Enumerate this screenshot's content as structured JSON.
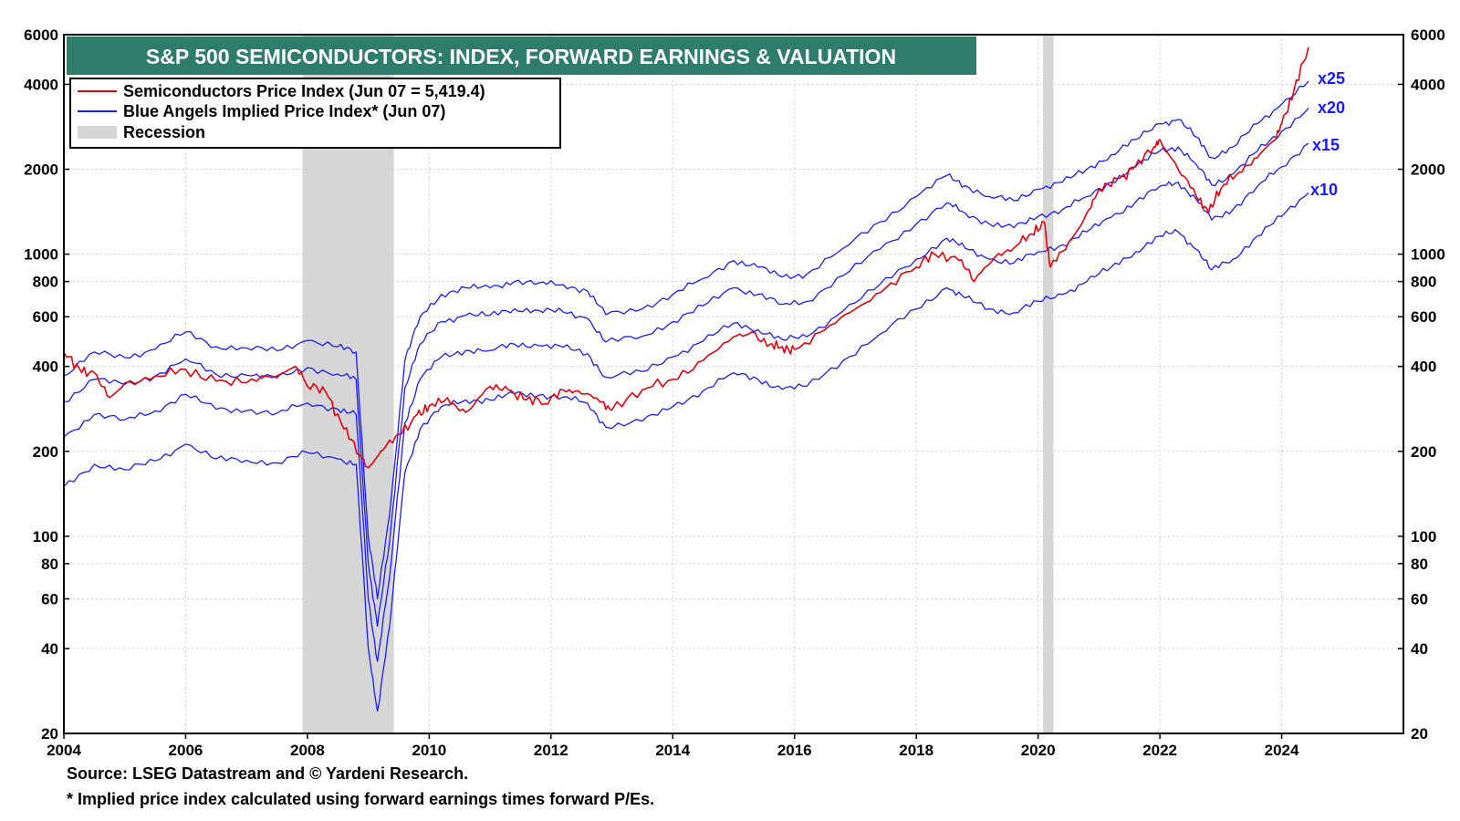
{
  "chart_data": {
    "type": "line",
    "title": "S&P 500 SEMICONDUCTORS: INDEX, FORWARD EARNINGS & VALUATION",
    "y_scale": "log",
    "xlim": [
      2004,
      2026
    ],
    "ylim": [
      20,
      6000
    ],
    "x_ticks": [
      "2004",
      "2006",
      "2008",
      "2010",
      "2012",
      "2014",
      "2016",
      "2018",
      "2020",
      "2022",
      "2024"
    ],
    "y_ticks": [
      20,
      40,
      60,
      80,
      100,
      200,
      400,
      600,
      800,
      1000,
      2000,
      4000,
      6000
    ],
    "grid": true,
    "legend_position": "top-left",
    "legend": [
      {
        "label": "Semiconductors Price Index (Jun 07 = 5,419.4)",
        "color": "#e8000b"
      },
      {
        "label": "Blue Angels Implied Price Index* (Jun 07)",
        "color": "#1a1aff"
      },
      {
        "label": "Recession",
        "color": "#d6d6d6"
      }
    ],
    "recessions": [
      [
        2007.92,
        2009.42
      ],
      [
        2020.08,
        2020.25
      ]
    ],
    "multiple_labels": [
      "x25",
      "x20",
      "x15",
      "x10"
    ],
    "series": [
      {
        "name": "Semiconductors Price Index",
        "color": "#e8000b",
        "x": [
          2004.0,
          2004.25,
          2004.5,
          2004.75,
          2005.0,
          2005.5,
          2006.0,
          2006.5,
          2007.0,
          2007.5,
          2007.8,
          2008.0,
          2008.3,
          2008.6,
          2008.85,
          2009.0,
          2009.2,
          2009.5,
          2009.8,
          2010.0,
          2010.3,
          2010.6,
          2011.0,
          2011.3,
          2011.6,
          2011.9,
          2012.2,
          2012.5,
          2012.8,
          2013.0,
          2013.5,
          2014.0,
          2014.5,
          2015.0,
          2015.3,
          2015.6,
          2015.8,
          2016.0,
          2016.5,
          2017.0,
          2017.5,
          2018.0,
          2018.3,
          2018.7,
          2018.95,
          2019.3,
          2019.6,
          2019.9,
          2020.1,
          2020.2,
          2020.5,
          2020.8,
          2021.0,
          2021.3,
          2021.6,
          2021.9,
          2022.0,
          2022.3,
          2022.6,
          2022.8,
          2023.0,
          2023.3,
          2023.6,
          2023.9,
          2024.0,
          2024.2,
          2024.44
        ],
        "y": [
          450,
          395,
          380,
          310,
          350,
          370,
          390,
          355,
          350,
          370,
          400,
          340,
          325,
          240,
          195,
          175,
          200,
          230,
          270,
          290,
          310,
          275,
          340,
          330,
          305,
          295,
          330,
          320,
          300,
          280,
          330,
          360,
          420,
          510,
          530,
          480,
          470,
          460,
          540,
          640,
          760,
          900,
          1000,
          950,
          800,
          980,
          1050,
          1180,
          1300,
          900,
          1100,
          1400,
          1700,
          1850,
          2050,
          2400,
          2550,
          2000,
          1600,
          1400,
          1700,
          1950,
          2200,
          2550,
          2900,
          3800,
          5419.4
        ]
      },
      {
        "name": "Implied x25",
        "color": "#1a1aff",
        "x": [
          2004.0,
          2004.5,
          2005.0,
          2005.5,
          2006.0,
          2006.5,
          2007.0,
          2007.5,
          2008.0,
          2008.5,
          2008.8,
          2009.0,
          2009.15,
          2009.35,
          2009.6,
          2009.85,
          2010.2,
          2010.6,
          2011.0,
          2011.4,
          2011.8,
          2012.2,
          2012.6,
          2012.9,
          2013.5,
          2014.0,
          2014.5,
          2015.0,
          2015.4,
          2015.8,
          2016.2,
          2016.8,
          2017.4,
          2018.0,
          2018.5,
          2018.8,
          2019.2,
          2019.6,
          2020.0,
          2020.4,
          2020.8,
          2021.2,
          2021.6,
          2022.0,
          2022.3,
          2022.6,
          2022.85,
          2023.2,
          2023.6,
          2024.0,
          2024.44
        ],
        "y": [
          370,
          450,
          430,
          460,
          530,
          470,
          465,
          455,
          495,
          470,
          450,
          100,
          60,
          120,
          420,
          600,
          720,
          760,
          760,
          800,
          790,
          780,
          740,
          610,
          640,
          720,
          820,
          950,
          900,
          830,
          850,
          1050,
          1300,
          1600,
          1900,
          1750,
          1600,
          1550,
          1700,
          1800,
          2000,
          2250,
          2550,
          2900,
          3000,
          2600,
          2200,
          2400,
          2900,
          3400,
          4100
        ]
      },
      {
        "name": "Implied x20",
        "color": "#1a1aff",
        "x": [
          2004.0,
          2004.5,
          2005.0,
          2005.5,
          2006.0,
          2006.5,
          2007.0,
          2007.5,
          2008.0,
          2008.5,
          2008.8,
          2009.0,
          2009.15,
          2009.35,
          2009.6,
          2009.85,
          2010.2,
          2010.6,
          2011.0,
          2011.4,
          2011.8,
          2012.2,
          2012.6,
          2012.9,
          2013.5,
          2014.0,
          2014.5,
          2015.0,
          2015.4,
          2015.8,
          2016.2,
          2016.8,
          2017.4,
          2018.0,
          2018.5,
          2018.8,
          2019.2,
          2019.6,
          2020.0,
          2020.4,
          2020.8,
          2021.2,
          2021.6,
          2022.0,
          2022.3,
          2022.6,
          2022.85,
          2023.2,
          2023.6,
          2024.0,
          2024.44
        ],
        "y": [
          300,
          360,
          345,
          370,
          425,
          375,
          372,
          364,
          396,
          376,
          360,
          80,
          48,
          96,
          336,
          480,
          576,
          608,
          608,
          640,
          632,
          624,
          592,
          488,
          512,
          576,
          656,
          760,
          720,
          664,
          680,
          840,
          1040,
          1280,
          1520,
          1400,
          1280,
          1240,
          1360,
          1440,
          1600,
          1800,
          2040,
          2320,
          2400,
          2080,
          1760,
          1920,
          2320,
          2720,
          3300
        ]
      },
      {
        "name": "Implied x15",
        "color": "#1a1aff",
        "x": [
          2004.0,
          2004.5,
          2005.0,
          2005.5,
          2006.0,
          2006.5,
          2007.0,
          2007.5,
          2008.0,
          2008.5,
          2008.8,
          2009.0,
          2009.15,
          2009.35,
          2009.6,
          2009.85,
          2010.2,
          2010.6,
          2011.0,
          2011.4,
          2011.8,
          2012.2,
          2012.6,
          2012.9,
          2013.5,
          2014.0,
          2014.5,
          2015.0,
          2015.4,
          2015.8,
          2016.2,
          2016.8,
          2017.4,
          2018.0,
          2018.5,
          2018.8,
          2019.2,
          2019.6,
          2020.0,
          2020.4,
          2020.8,
          2021.2,
          2021.6,
          2022.0,
          2022.3,
          2022.6,
          2022.85,
          2023.2,
          2023.6,
          2024.0,
          2024.44
        ],
        "y": [
          225,
          270,
          259,
          278,
          319,
          282,
          279,
          273,
          297,
          282,
          270,
          60,
          36,
          72,
          252,
          360,
          432,
          456,
          456,
          480,
          474,
          468,
          444,
          366,
          384,
          432,
          492,
          570,
          540,
          498,
          510,
          630,
          780,
          960,
          1140,
          1050,
          960,
          930,
          1020,
          1080,
          1200,
          1350,
          1530,
          1740,
          1800,
          1560,
          1320,
          1440,
          1740,
          2040,
          2470
        ]
      },
      {
        "name": "Implied x10",
        "color": "#1a1aff",
        "x": [
          2004.0,
          2004.5,
          2005.0,
          2005.5,
          2006.0,
          2006.5,
          2007.0,
          2007.5,
          2008.0,
          2008.5,
          2008.8,
          2009.0,
          2009.15,
          2009.35,
          2009.6,
          2009.85,
          2010.2,
          2010.6,
          2011.0,
          2011.4,
          2011.8,
          2012.2,
          2012.6,
          2012.9,
          2013.5,
          2014.0,
          2014.5,
          2015.0,
          2015.4,
          2015.8,
          2016.2,
          2016.8,
          2017.4,
          2018.0,
          2018.5,
          2018.8,
          2019.2,
          2019.6,
          2020.0,
          2020.4,
          2020.8,
          2021.2,
          2021.6,
          2022.0,
          2022.3,
          2022.6,
          2022.85,
          2023.2,
          2023.6,
          2024.0,
          2024.44
        ],
        "y": [
          150,
          180,
          172,
          185,
          212,
          188,
          186,
          182,
          198,
          188,
          180,
          40,
          24,
          48,
          168,
          240,
          288,
          304,
          304,
          320,
          316,
          312,
          296,
          244,
          256,
          288,
          328,
          380,
          360,
          332,
          340,
          420,
          520,
          640,
          760,
          700,
          640,
          620,
          680,
          720,
          800,
          900,
          1020,
          1160,
          1200,
          1040,
          880,
          960,
          1160,
          1360,
          1650
        ]
      }
    ]
  },
  "footnotes": {
    "source": "Source: LSEG Datastream and © Yardeni Research.",
    "note": "* Implied price index calculated using forward earnings times forward P/Es."
  }
}
